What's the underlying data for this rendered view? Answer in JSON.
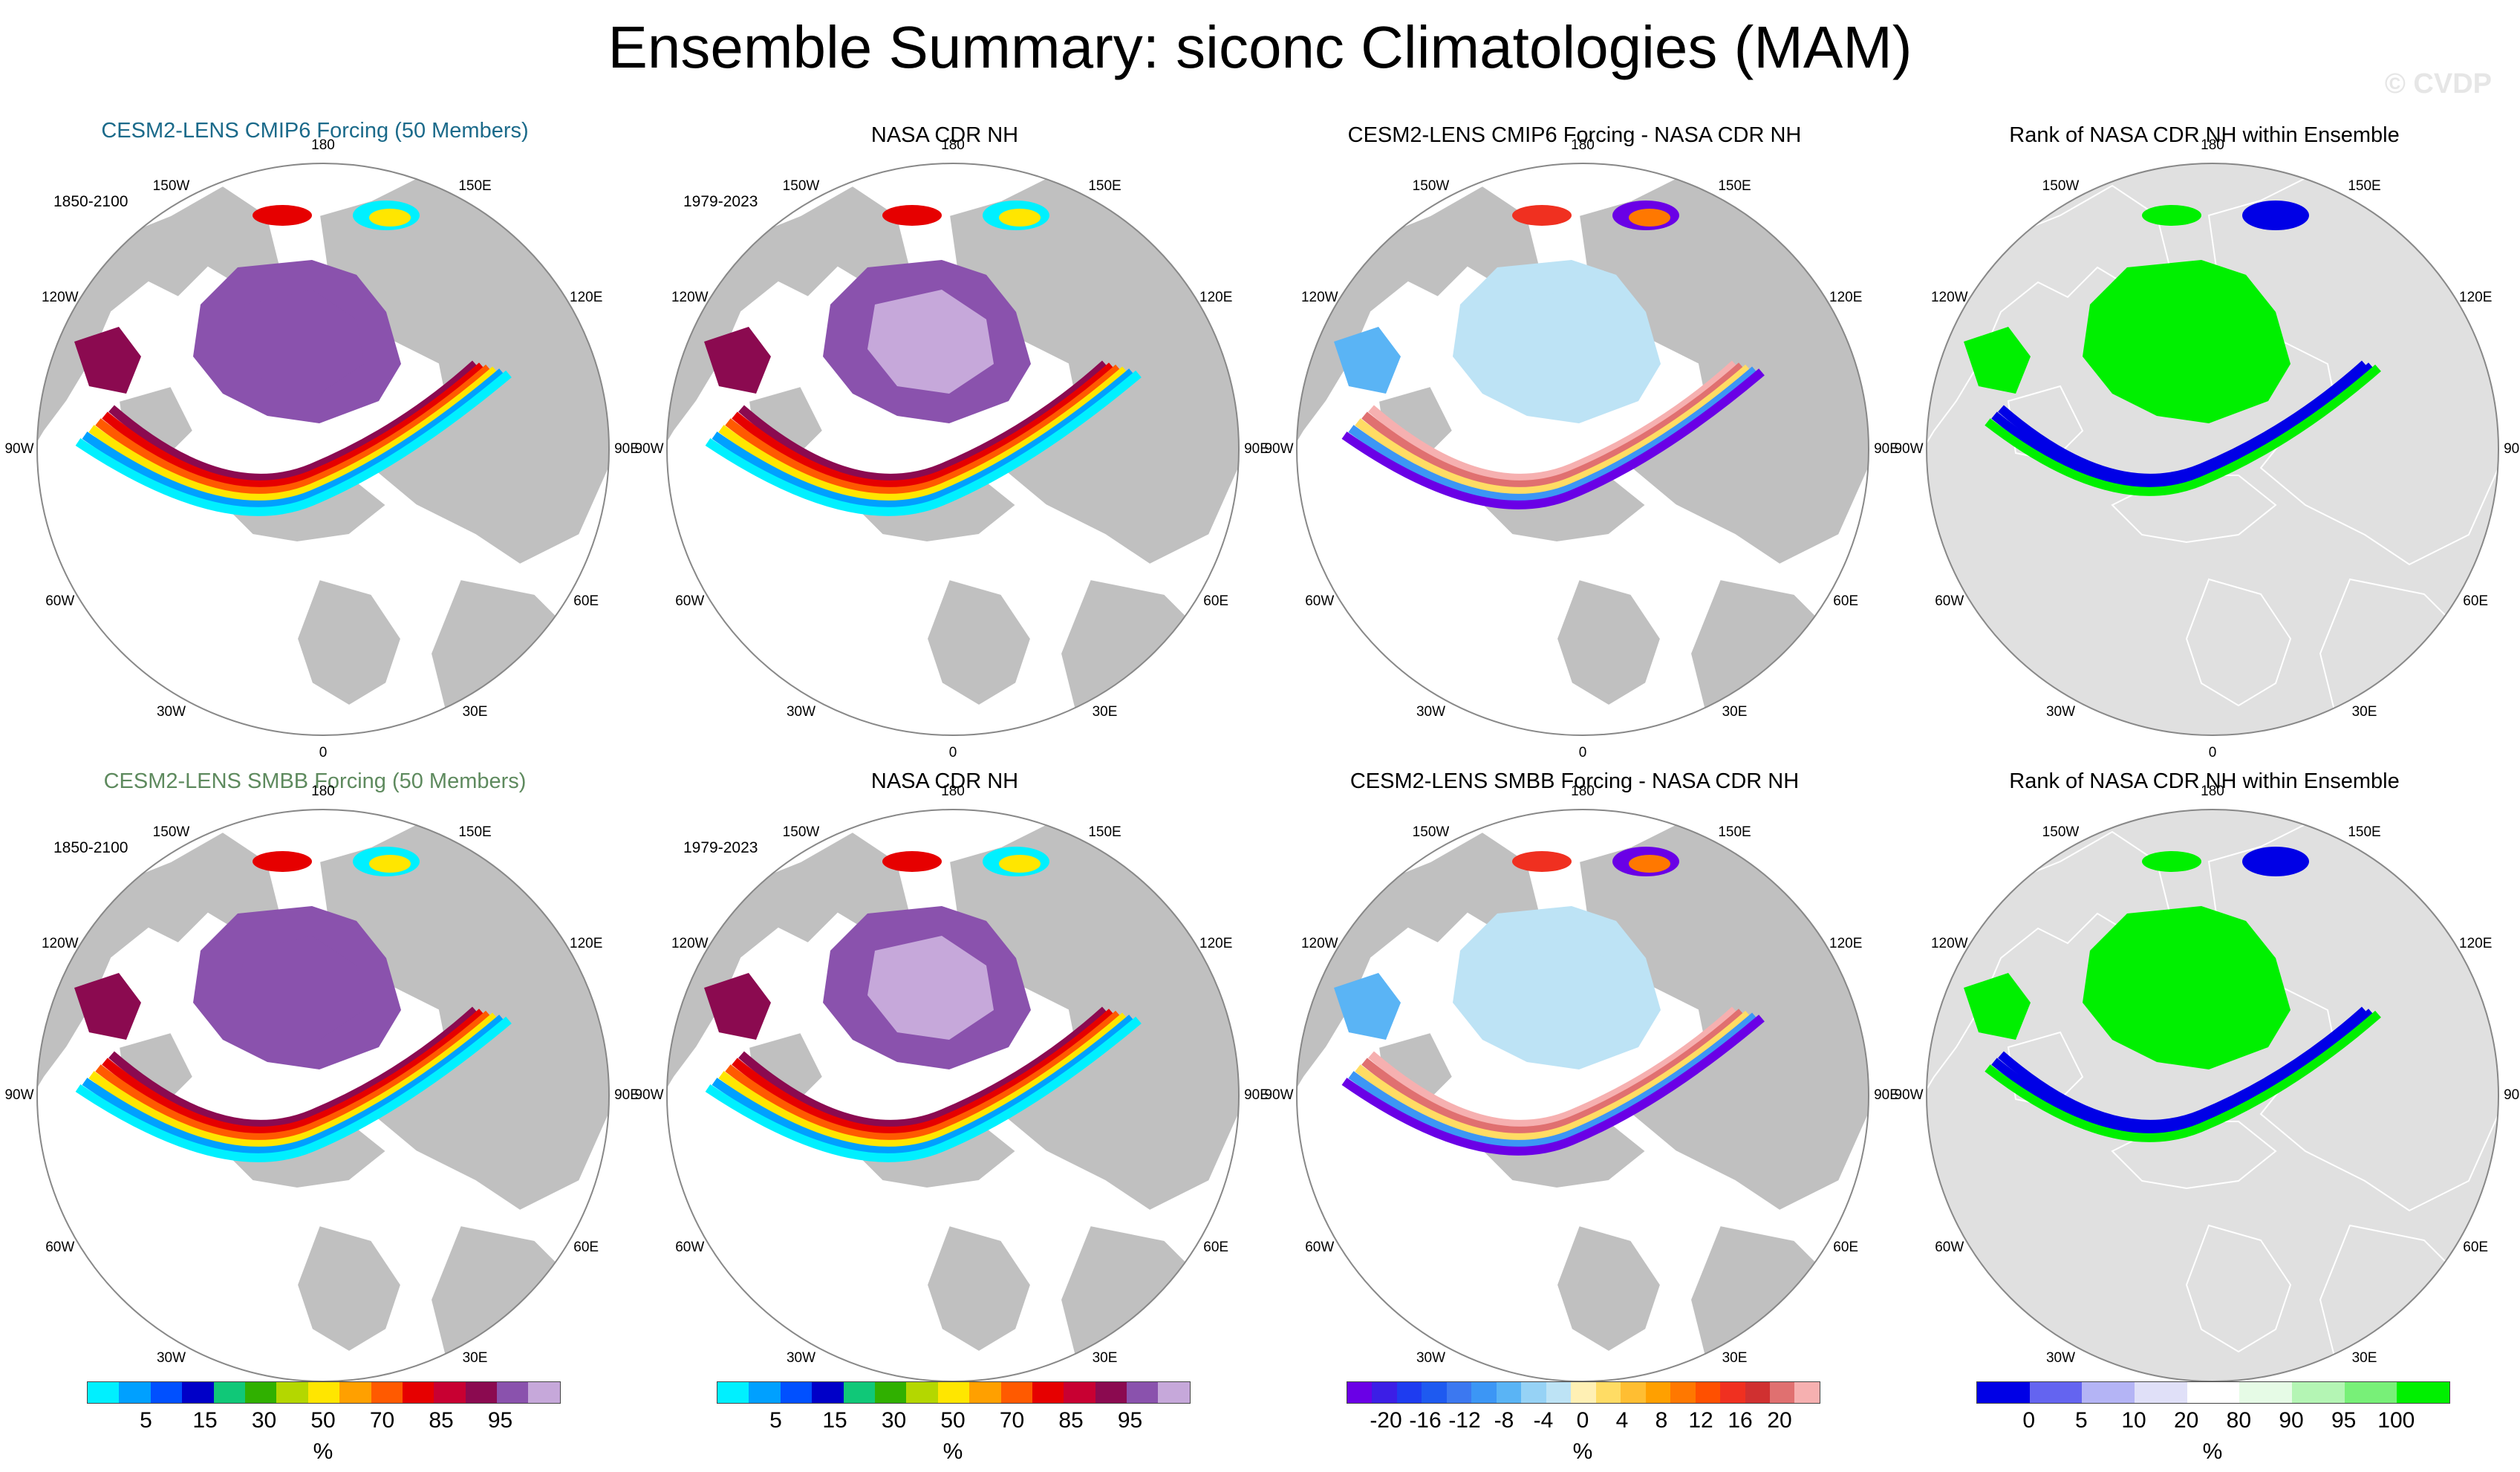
{
  "title": "Ensemble Summary: siconc Climatologies (MAM)",
  "watermark": "© CVDP",
  "colors": {
    "land": "#c0c0c0",
    "ocean": "#ffffff",
    "rank_bg": "#e0e0e0",
    "purple": "#8a52ad",
    "light_purple": "#c6a8da",
    "dark_red": "#8b0a50",
    "ice_blue": "#bde3f5",
    "pink": "#f6b0b0",
    "green": "#00f000",
    "blue": "#0000e6",
    "title_top": "#1b6a8a",
    "title_bottom": "#5e8a5e"
  },
  "longitude_labels": [
    "180",
    "150W",
    "150E",
    "120W",
    "120E",
    "90W",
    "90E",
    "60W",
    "60E",
    "30W",
    "30E",
    "0"
  ],
  "panels": [
    {
      "title": "CESM2-LENS CMIP6 Forcing (50 Members)",
      "years": "1850-2100",
      "kind": "abs",
      "title_color": "#1b6a8a"
    },
    {
      "title": "NASA CDR NH",
      "years": "1979-2023",
      "kind": "abs",
      "title_color": "#000000"
    },
    {
      "title": "CESM2-LENS CMIP6 Forcing - NASA CDR NH",
      "years": "",
      "kind": "diff",
      "title_color": "#000000"
    },
    {
      "title": "Rank of NASA CDR NH within Ensemble",
      "years": "",
      "kind": "rank",
      "title_color": "#000000"
    },
    {
      "title": "CESM2-LENS SMBB Forcing (50 Members)",
      "years": "1850-2100",
      "kind": "abs",
      "title_color": "#5e8a5e"
    },
    {
      "title": "NASA CDR NH",
      "years": "1979-2023",
      "kind": "abs",
      "title_color": "#000000"
    },
    {
      "title": "CESM2-LENS SMBB Forcing - NASA CDR NH",
      "years": "",
      "kind": "diff",
      "title_color": "#000000"
    },
    {
      "title": "Rank of NASA CDR NH within Ensemble",
      "years": "",
      "kind": "rank",
      "title_color": "#000000"
    }
  ],
  "colorbars": [
    {
      "unit": "%",
      "colors": [
        "#00f0ff",
        "#00a0ff",
        "#0050ff",
        "#0000c8",
        "#10c878",
        "#30b000",
        "#b4d700",
        "#ffe600",
        "#ffa000",
        "#ff5a00",
        "#e60000",
        "#c80032",
        "#8b0a50",
        "#8a52ad",
        "#c6a8da"
      ],
      "ticks": [
        "5",
        "15",
        "30",
        "50",
        "70",
        "85",
        "95"
      ]
    },
    {
      "unit": "%",
      "colors": [
        "#00f0ff",
        "#00a0ff",
        "#0050ff",
        "#0000c8",
        "#10c878",
        "#30b000",
        "#b4d700",
        "#ffe600",
        "#ffa000",
        "#ff5a00",
        "#e60000",
        "#c80032",
        "#8b0a50",
        "#8a52ad",
        "#c6a8da"
      ],
      "ticks": [
        "5",
        "15",
        "30",
        "50",
        "70",
        "85",
        "95"
      ]
    },
    {
      "unit": "%",
      "colors": [
        "#6a00e6",
        "#3c1ee6",
        "#1e3cf0",
        "#1e5af0",
        "#3c78f0",
        "#3c96f5",
        "#5ab4f5",
        "#96d2f5",
        "#bde3f5",
        "#fff0b4",
        "#ffdc64",
        "#ffbe32",
        "#ffa000",
        "#ff7800",
        "#ff5000",
        "#f03020",
        "#d03030",
        "#e07070",
        "#f6b0b0"
      ],
      "ticks": [
        "-20",
        "-16",
        "-12",
        "-8",
        "-4",
        "0",
        "4",
        "8",
        "12",
        "16",
        "20"
      ]
    },
    {
      "unit": "%",
      "colors": [
        "#0000e6",
        "#6464f0",
        "#b4b4f5",
        "#e0e0f8",
        "#ffffff",
        "#e6fbe6",
        "#b4f5b4",
        "#78f078",
        "#00f000"
      ],
      "ticks": [
        "0",
        "5",
        "10",
        "20",
        "80",
        "90",
        "95",
        "100"
      ]
    }
  ]
}
